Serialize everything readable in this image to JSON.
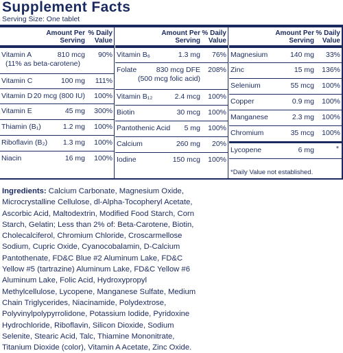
{
  "header": {
    "title": "Supplement Facts",
    "serving": "Serving Size: One tablet"
  },
  "column_header": {
    "amount": "Amount Per Serving",
    "amount_line1": "Amount Per",
    "amount_line2": "Serving",
    "dv_line1": "% Daily",
    "dv_line2": "Value"
  },
  "columns": [
    {
      "rows": [
        {
          "name": "Vitamin A",
          "name2": "(11% as beta-carotene)",
          "amount": "810 mcg",
          "dv": "90%"
        },
        {
          "name": "Vitamin C",
          "amount": "100 mg",
          "dv": "111%"
        },
        {
          "name": "Vitamin D",
          "amount": "20 mcg (800 IU)",
          "dv": "100%"
        },
        {
          "name": "Vitamin E",
          "amount": "45 mg",
          "dv": "300%"
        },
        {
          "name": "Thiamin (B₁)",
          "amount": "1.2 mg",
          "dv": "100%"
        },
        {
          "name": "Riboflavin (B₂)",
          "amount": "1.3 mg",
          "dv": "100%"
        },
        {
          "name": "Niacin",
          "amount": "16 mg",
          "dv": "100%"
        }
      ]
    },
    {
      "rows": [
        {
          "name": "Vitamin B₆",
          "amount": "1.3 mg",
          "dv": "76%"
        },
        {
          "name": "Folate",
          "amount": "830 mcg DFE",
          "amount2": "(500 mcg folic acid)",
          "dv": "208%"
        },
        {
          "name": "Vitamin B₁₂",
          "amount": "2.4 mcg",
          "dv": "100%"
        },
        {
          "name": "Biotin",
          "amount": "30 mcg",
          "dv": "100%"
        },
        {
          "name": "Pantothenic Acid",
          "amount": "5 mg",
          "dv": "100%"
        },
        {
          "name": "Calcium",
          "amount": "260 mg",
          "dv": "20%"
        },
        {
          "name": "Iodine",
          "amount": "150 mcg",
          "dv": "100%"
        }
      ]
    },
    {
      "rows": [
        {
          "name": "Magnesium",
          "amount": "140 mg",
          "dv": "33%"
        },
        {
          "name": "Zinc",
          "amount": "15 mg",
          "dv": "136%"
        },
        {
          "name": "Selenium",
          "amount": "55 mcg",
          "dv": "100%"
        },
        {
          "name": "Copper",
          "amount": "0.9 mg",
          "dv": "100%"
        },
        {
          "name": "Manganese",
          "amount": "2.3 mg",
          "dv": "100%"
        },
        {
          "name": "Chromium",
          "amount": "35 mcg",
          "dv": "100%"
        },
        {
          "name": "Lycopene",
          "amount": "6 mg",
          "dv": "*"
        }
      ],
      "footnote": "*Daily Value not established."
    }
  ],
  "ingredients": {
    "label": "Ingredients:",
    "text": "Calcium Carbonate, Magnesium Oxide, Microcrystalline Cellulose, dl-Alpha-Tocopheryl Acetate, Ascorbic Acid, Maltodextrin, Modified Food Starch, Corn Starch, Gelatin; Less than 2% of: Beta-Carotene, Biotin, Cholecalciferol, Chromium Chloride, Croscarmellose Sodium, Cupric Oxide, Cyanocobalamin, D-Calcium Pantothenate, FD&C Blue #2 Aluminum Lake, FD&C Yellow #5 (tartrazine) Aluminum Lake, FD&C Yellow #6 Aluminum Lake, Folic Acid, Hydroxypropyl Methylcellulose, Lycopene, Manganese Sulfate, Medium Chain Triglycerides, Niacinamide, Polydextrose, Polyvinylpolypyrrolidone, Potassium Iodide, Pyridoxine Hydrochloride, Riboflavin, Silicon Dioxide, Sodium Selenite, Stearic Acid, Talc, Thiamine Mononitrate, Titanium Dioxide (color), Vitamin A Acetate, Zinc Oxide."
  },
  "colors": {
    "ink": "#1b2a5e",
    "background": "#ffffff"
  }
}
